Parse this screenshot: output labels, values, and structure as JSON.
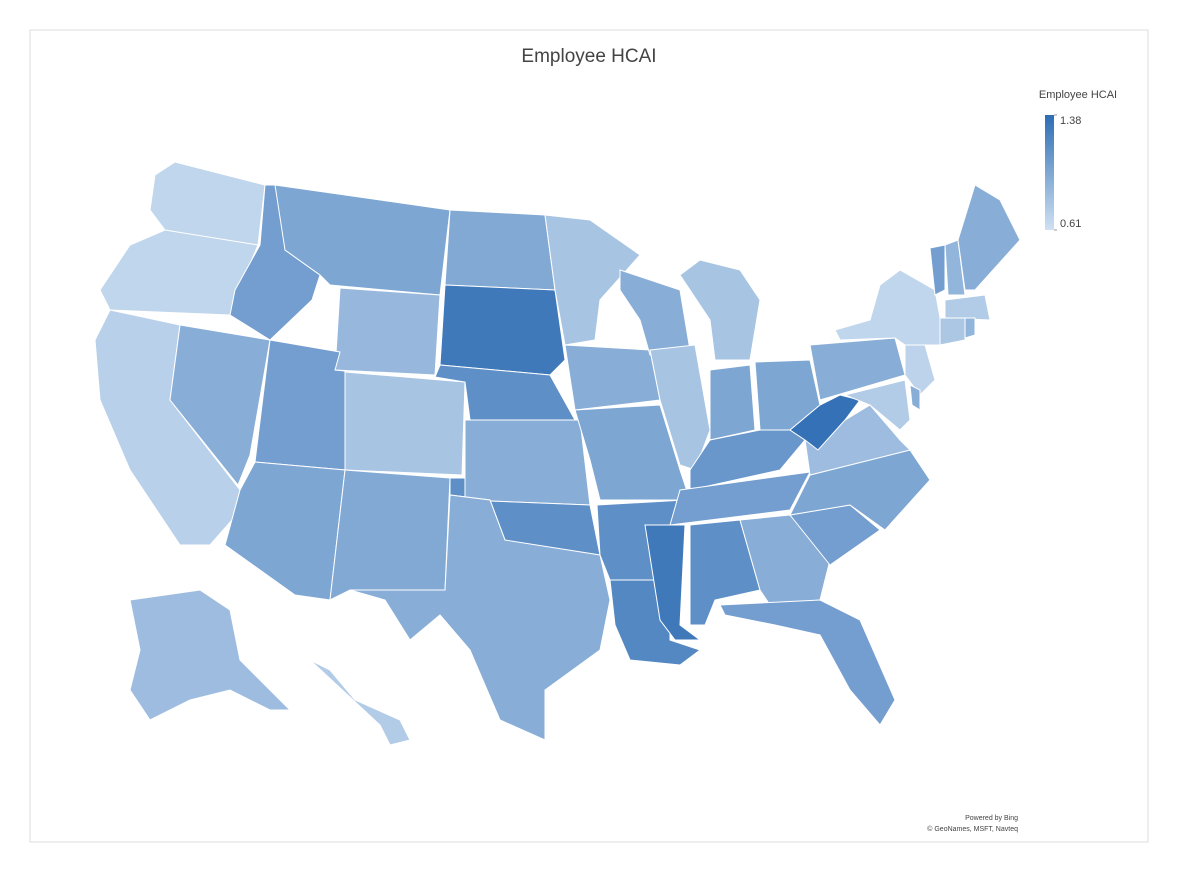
{
  "chart_data": {
    "type": "choropleth",
    "title": "Employee HCAI",
    "values": [
      0.68,
      0.68,
      0.72,
      0.95,
      1.05,
      1.0,
      0.88,
      1.05,
      0.8,
      1.0,
      0.98,
      0.98,
      1.3,
      1.15,
      0.95,
      1.15,
      0.95,
      0.8,
      0.95,
      1.0,
      1.15,
      1.2,
      0.95,
      0.8,
      0.8,
      1.0,
      1.0,
      1.1,
      1.05,
      1.3,
      1.15,
      0.95,
      1.05,
      1.05,
      1.0,
      0.85,
      1.35,
      0.95,
      0.68,
      1.05,
      0.9,
      0.95,
      0.75,
      0.78,
      0.9,
      0.7,
      0.95,
      0.75,
      0.85,
      0.75
    ],
    "colorbar": {
      "title": "Employee HCAI",
      "lim": [
        0.61,
        1.38
      ],
      "ticks": [
        0.61,
        1.38
      ],
      "colors": [
        "#cfe0f2",
        "#2e6db4"
      ]
    },
    "footer": [
      "Powered by Bing",
      "© GeoNames, MSFT, Navteq"
    ]
  }
}
